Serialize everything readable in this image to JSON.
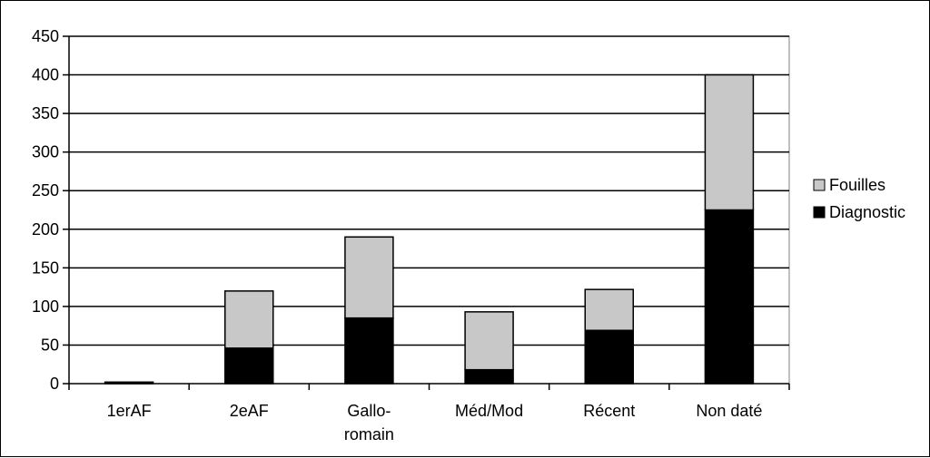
{
  "chart_data": {
    "type": "bar",
    "stacked": true,
    "categories": [
      [
        "1erAF"
      ],
      [
        "2eAF"
      ],
      [
        "Gallo-",
        "romain"
      ],
      [
        "Méd/Mod"
      ],
      [
        "Récent"
      ],
      [
        "Non daté"
      ]
    ],
    "series": [
      {
        "name": "Diagnostic",
        "values": [
          2,
          46,
          85,
          18,
          69,
          225
        ],
        "color": "#000000"
      },
      {
        "name": "Fouilles",
        "values": [
          0,
          74,
          105,
          75,
          53,
          175
        ],
        "color": "#c8c8c8"
      }
    ],
    "ylim": [
      0,
      450
    ],
    "yticks": [
      0,
      50,
      100,
      150,
      200,
      250,
      300,
      350,
      400,
      450
    ],
    "grid": true,
    "legend_position": "right",
    "legend_order": [
      "Fouilles",
      "Diagnostic"
    ]
  }
}
